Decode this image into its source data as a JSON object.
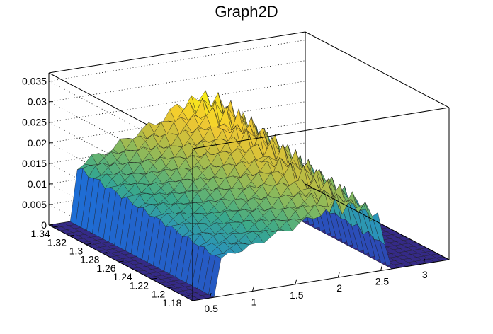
{
  "chart_data": {
    "type": "surface",
    "title": "Graph2D",
    "xlabel": "",
    "ylabel": "",
    "zlabel": "",
    "x_ticks": [
      "0.5",
      "1",
      "1.5",
      "2",
      "2.5",
      "3"
    ],
    "y_ticks": [
      "1.18",
      "1.2",
      "1.22",
      "1.24",
      "1.26",
      "1.28",
      "1.3",
      "1.32",
      "1.34"
    ],
    "z_ticks": [
      "0",
      "0.005",
      "0.01",
      "0.015",
      "0.02",
      "0.025",
      "0.03",
      "0.035"
    ],
    "xlim": [
      0.3,
      3.3
    ],
    "ylim": [
      1.17,
      1.345
    ],
    "zlim": [
      0,
      0.037
    ],
    "grid": true,
    "palette": [
      "#352a87",
      "#2c4bb6",
      "#1e6fd6",
      "#2a93b9",
      "#3aa98a",
      "#7eb862",
      "#c4bd3f",
      "#f3c931",
      "#f9fb0e"
    ],
    "profile_x": [
      0.3,
      0.55,
      0.6,
      0.75,
      0.9,
      1.05,
      1.2,
      1.35,
      1.5,
      1.65,
      1.8,
      1.95,
      2.1,
      2.25,
      2.4,
      2.5,
      2.6,
      3.3
    ],
    "profile_z": [
      0,
      0,
      0.011,
      0.013,
      0.0135,
      0.0145,
      0.016,
      0.017,
      0.018,
      0.0195,
      0.021,
      0.022,
      0.0225,
      0.021,
      0.018,
      0.016,
      0,
      0
    ],
    "y_scale_low": 0.78,
    "y_scale_high": 1.12
  }
}
